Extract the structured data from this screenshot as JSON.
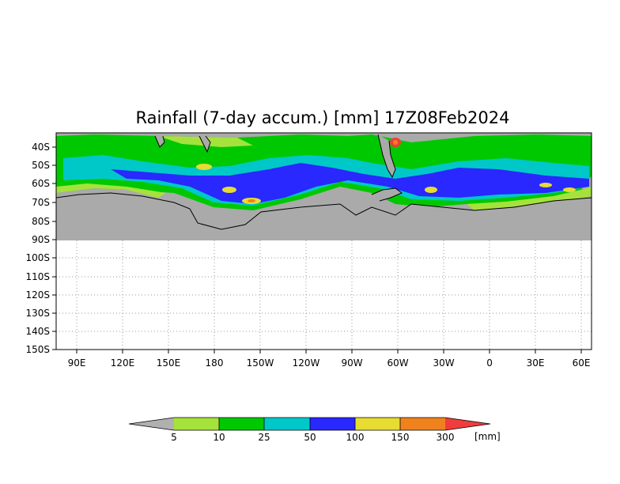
{
  "title": "Rainfall (7-day accum.) [mm] 17Z08Feb2024",
  "map": {
    "lat_labels": [
      "40S",
      "50S",
      "60S",
      "70S",
      "80S",
      "90S",
      "100S",
      "110S",
      "120S",
      "130S",
      "140S",
      "150S"
    ],
    "lon_labels": [
      "90E",
      "120E",
      "150E",
      "180",
      "150W",
      "120W",
      "90W",
      "60W",
      "30W",
      "0",
      "30E",
      "60E"
    ],
    "lat_range": [
      "35S",
      "150S"
    ],
    "lon_range": [
      "80E",
      "65E"
    ],
    "grid": "dotted",
    "no_data_below": "90S"
  },
  "legend": {
    "unit": "[mm]",
    "thresholds": [
      "5",
      "10",
      "25",
      "50",
      "100",
      "150",
      "300"
    ],
    "colors": [
      "#b0b0b0",
      "#a6e23c",
      "#00c800",
      "#00c8c8",
      "#2828ff",
      "#e6dc32",
      "#f0821e",
      "#f03c3c"
    ]
  },
  "colors": {
    "land": "#aaaaaa",
    "coast": "#000000"
  }
}
